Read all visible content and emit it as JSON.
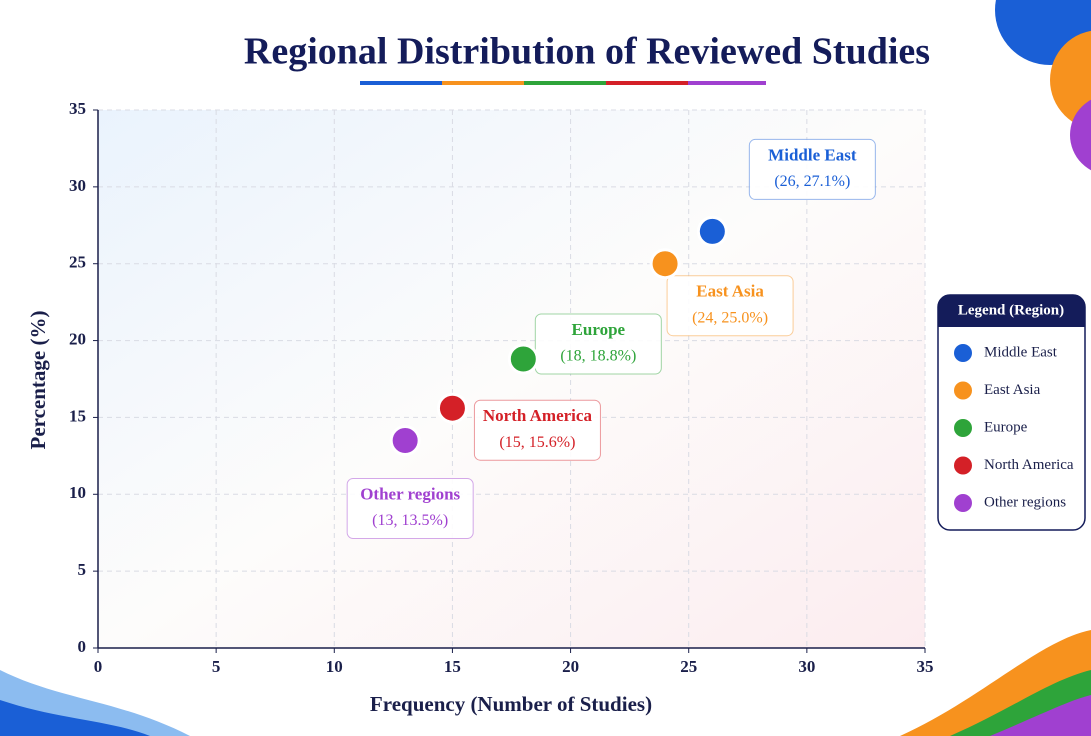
{
  "chart_data": {
    "type": "scatter",
    "title": "Regional Distribution of Reviewed Studies",
    "x_label": "Frequency (Number of Studies)",
    "y_label": "Percentage (%)",
    "legend_title": "Legend (Region)",
    "legend_position": "right",
    "grid": true,
    "xlim": [
      0,
      35
    ],
    "ylim": [
      0,
      35
    ],
    "xticks": [
      0,
      5,
      10,
      15,
      20,
      25,
      30,
      35
    ],
    "yticks": [
      0,
      5,
      10,
      15,
      20,
      25,
      30,
      35
    ],
    "series": [
      {
        "name": "Middle East",
        "color": "#1a5fd6",
        "x": [
          26
        ],
        "values": [
          27.1
        ],
        "value_labels": [
          "(26, 27.1%)"
        ]
      },
      {
        "name": "East Asia",
        "color": "#f7921e",
        "x": [
          24
        ],
        "values": [
          25.0
        ],
        "value_labels": [
          "(24, 25.0%)"
        ]
      },
      {
        "name": "Europe",
        "color": "#2ea43a",
        "x": [
          18
        ],
        "values": [
          18.8
        ],
        "value_labels": [
          "(18, 18.8%)"
        ]
      },
      {
        "name": "North America",
        "color": "#d42027",
        "x": [
          15
        ],
        "values": [
          15.6
        ],
        "value_labels": [
          "(15, 15.6%)"
        ]
      },
      {
        "name": "Other regions",
        "color": "#a040d0",
        "x": [
          13
        ],
        "values": [
          13.5
        ],
        "value_labels": [
          "(13, 13.5%)"
        ]
      }
    ]
  }
}
